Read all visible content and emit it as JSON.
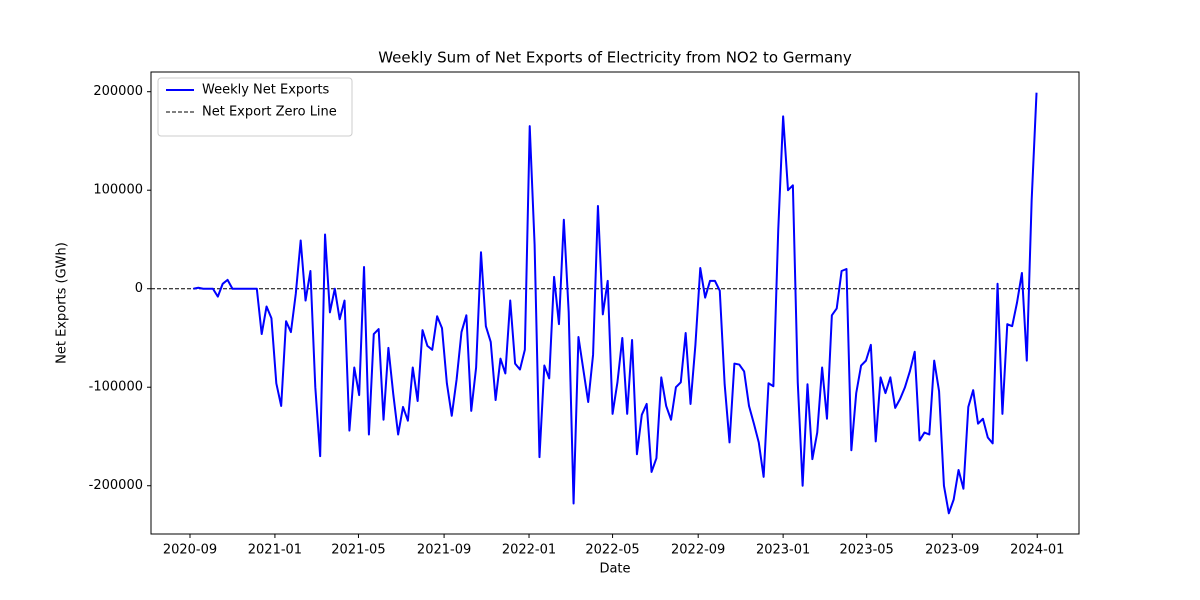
{
  "chart_data": {
    "type": "line",
    "title": "Weekly Sum of Net Exports of Electricity from NO2 to Germany",
    "x_label": "Date",
    "y_label": "Net Exports (GWh)",
    "x": [
      "2020-09-06",
      "2020-09-13",
      "2020-09-20",
      "2020-09-27",
      "2020-10-04",
      "2020-10-11",
      "2020-10-18",
      "2020-10-25",
      "2020-11-01",
      "2020-11-08",
      "2020-11-15",
      "2020-11-22",
      "2020-11-29",
      "2020-12-06",
      "2020-12-13",
      "2020-12-20",
      "2020-12-27",
      "2021-01-03",
      "2021-01-10",
      "2021-01-17",
      "2021-01-24",
      "2021-01-31",
      "2021-02-07",
      "2021-02-14",
      "2021-02-21",
      "2021-02-28",
      "2021-03-07",
      "2021-03-14",
      "2021-03-21",
      "2021-03-28",
      "2021-04-04",
      "2021-04-11",
      "2021-04-18",
      "2021-04-25",
      "2021-05-02",
      "2021-05-09",
      "2021-05-16",
      "2021-05-23",
      "2021-05-30",
      "2021-06-06",
      "2021-06-13",
      "2021-06-20",
      "2021-06-27",
      "2021-07-04",
      "2021-07-11",
      "2021-07-18",
      "2021-07-25",
      "2021-08-01",
      "2021-08-08",
      "2021-08-15",
      "2021-08-22",
      "2021-08-29",
      "2021-09-05",
      "2021-09-12",
      "2021-09-19",
      "2021-09-26",
      "2021-10-03",
      "2021-10-10",
      "2021-10-17",
      "2021-10-24",
      "2021-10-31",
      "2021-11-07",
      "2021-11-14",
      "2021-11-21",
      "2021-11-28",
      "2021-12-05",
      "2021-12-12",
      "2021-12-19",
      "2021-12-26",
      "2022-01-02",
      "2022-01-09",
      "2022-01-16",
      "2022-01-23",
      "2022-01-30",
      "2022-02-06",
      "2022-02-13",
      "2022-02-20",
      "2022-02-27",
      "2022-03-06",
      "2022-03-13",
      "2022-03-20",
      "2022-03-27",
      "2022-04-03",
      "2022-04-10",
      "2022-04-17",
      "2022-04-24",
      "2022-05-01",
      "2022-05-08",
      "2022-05-15",
      "2022-05-22",
      "2022-05-29",
      "2022-06-05",
      "2022-06-12",
      "2022-06-19",
      "2022-06-26",
      "2022-07-03",
      "2022-07-10",
      "2022-07-17",
      "2022-07-24",
      "2022-07-31",
      "2022-08-07",
      "2022-08-14",
      "2022-08-21",
      "2022-08-28",
      "2022-09-04",
      "2022-09-11",
      "2022-09-18",
      "2022-09-25",
      "2022-10-02",
      "2022-10-09",
      "2022-10-16",
      "2022-10-23",
      "2022-10-30",
      "2022-11-06",
      "2022-11-13",
      "2022-11-20",
      "2022-11-27",
      "2022-12-04",
      "2022-12-11",
      "2022-12-18",
      "2022-12-25",
      "2023-01-01",
      "2023-01-08",
      "2023-01-15",
      "2023-01-22",
      "2023-01-29",
      "2023-02-05",
      "2023-02-12",
      "2023-02-19",
      "2023-02-26",
      "2023-03-05",
      "2023-03-12",
      "2023-03-19",
      "2023-03-26",
      "2023-04-02",
      "2023-04-09",
      "2023-04-16",
      "2023-04-23",
      "2023-04-30",
      "2023-05-07",
      "2023-05-14",
      "2023-05-21",
      "2023-05-28",
      "2023-06-04",
      "2023-06-11",
      "2023-06-18",
      "2023-06-25",
      "2023-07-02",
      "2023-07-09",
      "2023-07-16",
      "2023-07-23",
      "2023-07-30",
      "2023-08-06",
      "2023-08-13",
      "2023-08-20",
      "2023-08-27",
      "2023-09-03",
      "2023-09-10",
      "2023-09-17",
      "2023-09-24",
      "2023-10-01",
      "2023-10-08",
      "2023-10-15",
      "2023-10-22",
      "2023-10-29",
      "2023-11-05",
      "2023-11-12",
      "2023-11-19",
      "2023-11-26",
      "2023-12-03",
      "2023-12-10",
      "2023-12-17",
      "2023-12-24",
      "2023-12-31"
    ],
    "series": [
      {
        "name": "Weekly Net Exports",
        "color": "#0000ff",
        "values": [
          0,
          1000,
          0,
          0,
          0,
          -8000,
          5000,
          9000,
          0,
          0,
          0,
          0,
          0,
          0,
          -46000,
          -18000,
          -30000,
          -96000,
          -119000,
          -33000,
          -44000,
          -5000,
          49000,
          -12000,
          18000,
          -100000,
          -170000,
          55000,
          -24000,
          0,
          -31000,
          -12000,
          -144000,
          -80000,
          -108000,
          22000,
          -148000,
          -46000,
          -41000,
          -133000,
          -60000,
          -107000,
          -148000,
          -120000,
          -134000,
          -80000,
          -114000,
          -42000,
          -58000,
          -62000,
          -28000,
          -40000,
          -96000,
          -129000,
          -92000,
          -44000,
          -27000,
          -124000,
          -80000,
          37000,
          -38000,
          -54000,
          -113000,
          -71000,
          -86000,
          -12000,
          -76000,
          -82000,
          -62000,
          165000,
          45000,
          -171000,
          -78000,
          -91000,
          12000,
          -36000,
          70000,
          -24000,
          -218000,
          -49000,
          -82000,
          -115000,
          -67000,
          84000,
          -26000,
          8000,
          -127000,
          -95000,
          -50000,
          -127000,
          -52000,
          -168000,
          -128000,
          -117000,
          -186000,
          -172000,
          -90000,
          -119000,
          -133000,
          -100000,
          -95000,
          -45000,
          -117000,
          -57000,
          21000,
          -9000,
          8000,
          8000,
          -2000,
          -97000,
          -156000,
          -76000,
          -77000,
          -84000,
          -119000,
          -137000,
          -156000,
          -191000,
          -96000,
          -99000,
          60000,
          175000,
          100000,
          105000,
          -95000,
          -200000,
          -97000,
          -173000,
          -146000,
          -80000,
          -132000,
          -27000,
          -20000,
          18000,
          20000,
          -164000,
          -106000,
          -78000,
          -73000,
          -57000,
          -155000,
          -90000,
          -106000,
          -90000,
          -121000,
          -112000,
          -100000,
          -84000,
          -64000,
          -154000,
          -146000,
          -148000,
          -73000,
          -104000,
          -200000,
          -228000,
          -214000,
          -184000,
          -203000,
          -120000,
          -103000,
          -137000,
          -132000,
          -151000,
          -157000,
          5000,
          -127000,
          -36000,
          -38000,
          -14000,
          16000,
          -73000,
          90000,
          199000
        ]
      }
    ],
    "reference_lines": [
      {
        "name": "Net Export Zero Line",
        "value": 0,
        "color": "#000000",
        "style": "dashed"
      }
    ],
    "xlim": [
      "2020-07-07",
      "2024-03-01"
    ],
    "xticks": [
      {
        "value": "2020-09-01",
        "label": "2020-09"
      },
      {
        "value": "2021-01-01",
        "label": "2021-01"
      },
      {
        "value": "2021-05-01",
        "label": "2021-05"
      },
      {
        "value": "2021-09-01",
        "label": "2021-09"
      },
      {
        "value": "2022-01-01",
        "label": "2022-01"
      },
      {
        "value": "2022-05-01",
        "label": "2022-05"
      },
      {
        "value": "2022-09-01",
        "label": "2022-09"
      },
      {
        "value": "2023-01-01",
        "label": "2023-01"
      },
      {
        "value": "2023-05-01",
        "label": "2023-05"
      },
      {
        "value": "2023-09-01",
        "label": "2023-09"
      },
      {
        "value": "2024-01-01",
        "label": "2024-01"
      }
    ],
    "ylim": [
      -249000,
      220000
    ],
    "yticks": [
      -200000,
      -100000,
      0,
      100000,
      200000
    ],
    "legend": "upper left"
  }
}
